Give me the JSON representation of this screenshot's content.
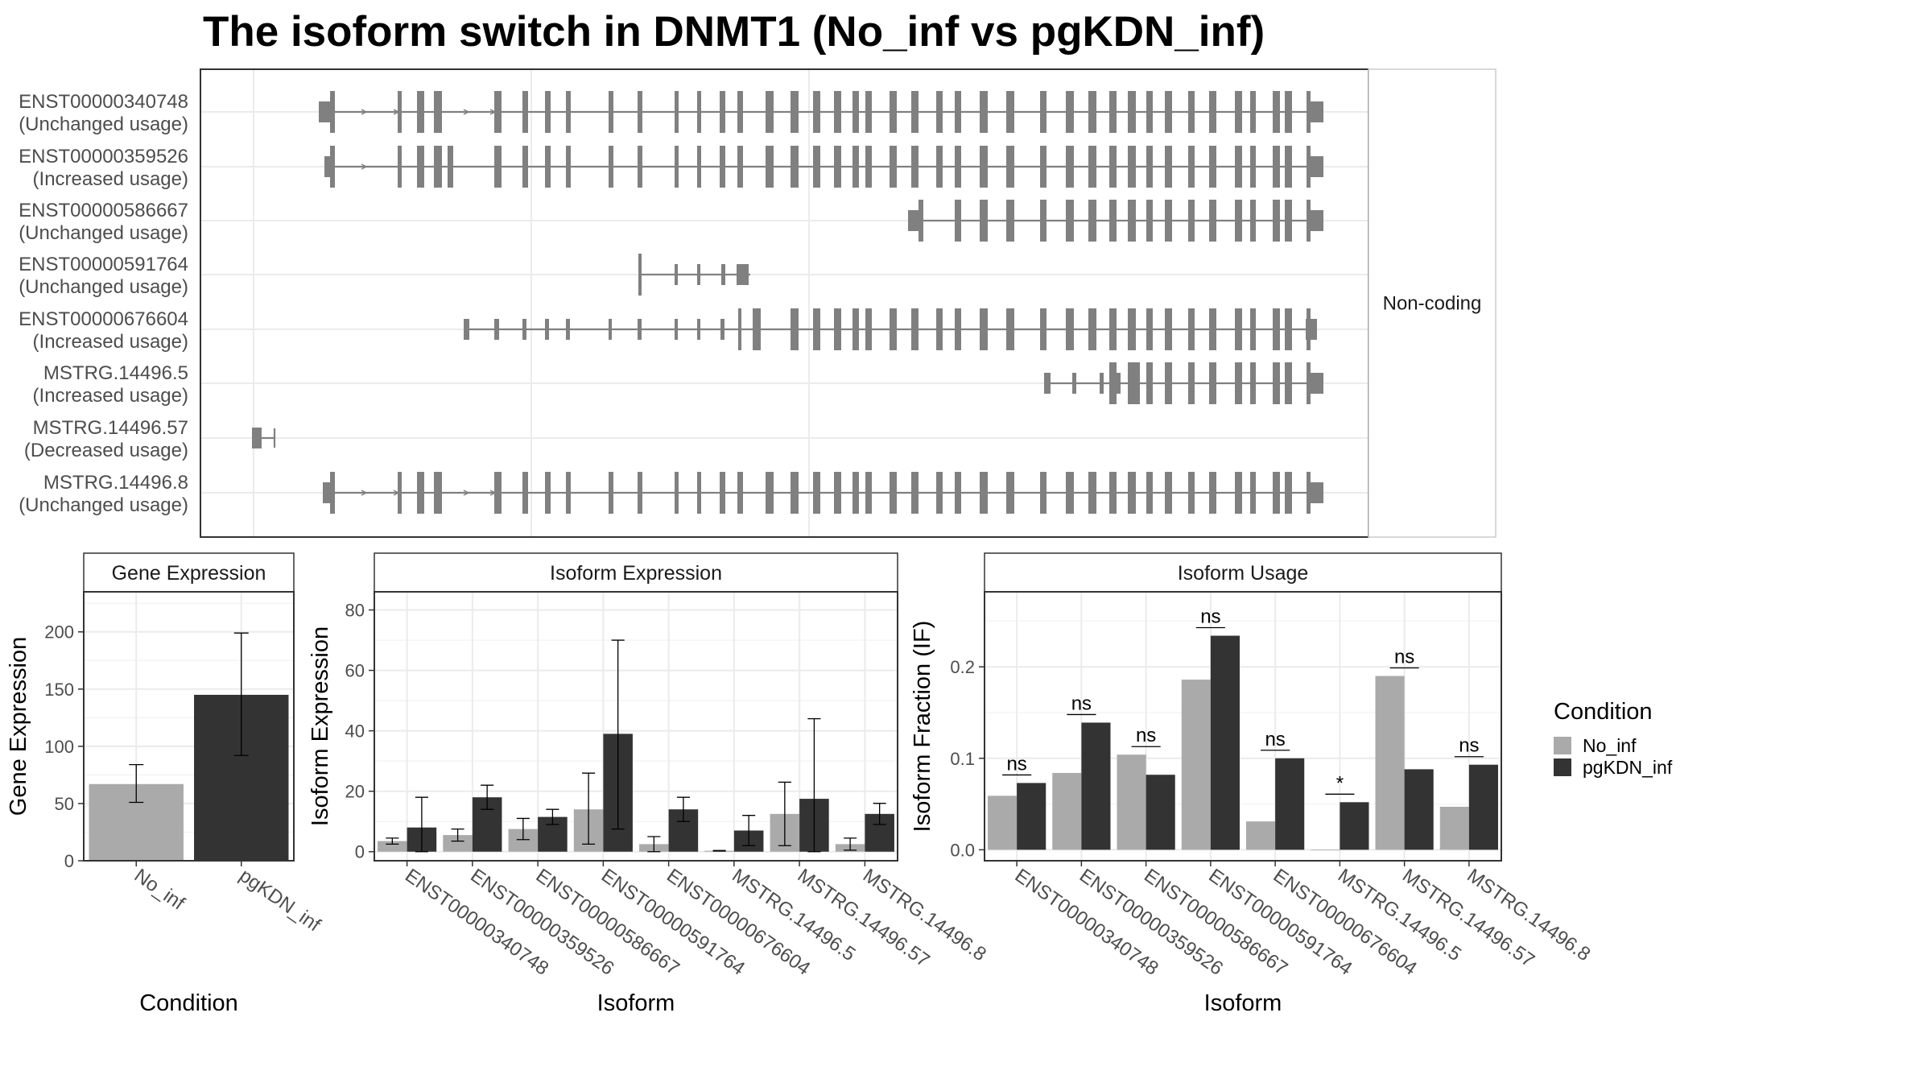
{
  "title": "The isoform switch in DNMT1 (No_inf vs pgKDN_inf)",
  "colors": {
    "No_inf": "#aaaaaa",
    "pgKDN_inf": "#333333",
    "exon": "#808080",
    "grid": "#ebebeb",
    "frame": "#333333"
  },
  "chart_data": [
    {
      "type": "gene-structure",
      "strip_label": "Non-coding",
      "isoforms": [
        {
          "id": "ENST00000340748",
          "usage": "(Unchanged usage)"
        },
        {
          "id": "ENST00000359526",
          "usage": "(Increased usage)"
        },
        {
          "id": "ENST00000586667",
          "usage": "(Unchanged usage)"
        },
        {
          "id": "ENST00000591764",
          "usage": "(Unchanged usage)"
        },
        {
          "id": "ENST00000676604",
          "usage": "(Increased usage)"
        },
        {
          "id": "MSTRG.14496.5",
          "usage": "(Increased usage)"
        },
        {
          "id": "MSTRG.14496.57",
          "usage": "(Decreased usage)"
        },
        {
          "id": "MSTRG.14496.8",
          "usage": "(Unchanged usage)"
        }
      ]
    },
    {
      "type": "bar",
      "title": "Gene Expression",
      "xlabel": "Condition",
      "ylabel": "Gene Expression",
      "categories": [
        "No_inf",
        "pgKDN_inf"
      ],
      "values": [
        67,
        145
      ],
      "error_low": [
        51,
        92
      ],
      "error_high": [
        84,
        199
      ],
      "ylim": [
        0,
        235
      ],
      "yticks": [
        0,
        50,
        100,
        150,
        200
      ]
    },
    {
      "type": "bar",
      "title": "Isoform Expression",
      "xlabel": "Isoform",
      "ylabel": "Isoform Expression",
      "categories": [
        "ENST00000340748",
        "ENST00000359526",
        "ENST00000586667",
        "ENST00000591764",
        "ENST00000676604",
        "MSTRG.14496.5",
        "MSTRG.14496.57",
        "MSTRG.14496.8"
      ],
      "series": [
        {
          "name": "No_inf",
          "values": [
            3.5,
            5.5,
            7.5,
            14,
            2.5,
            0.3,
            12.5,
            2.5
          ],
          "error_low": [
            2.5,
            3.5,
            4,
            2.5,
            0,
            0.2,
            2,
            0.5
          ],
          "error_high": [
            4.5,
            7.5,
            11,
            26,
            5,
            0.4,
            23,
            4.5
          ]
        },
        {
          "name": "pgKDN_inf",
          "values": [
            8,
            18,
            11.5,
            39,
            14,
            7,
            17.5,
            12.5
          ],
          "error_low": [
            0,
            14,
            9,
            7.5,
            10,
            2,
            0,
            9
          ],
          "error_high": [
            18,
            22,
            14,
            70,
            18,
            12,
            44,
            16
          ]
        }
      ],
      "ylim": [
        -3,
        86
      ],
      "yticks": [
        0,
        20,
        40,
        60,
        80
      ]
    },
    {
      "type": "bar",
      "title": "Isoform Usage",
      "xlabel": "Isoform",
      "ylabel": "Isoform Fraction (IF)",
      "categories": [
        "ENST00000340748",
        "ENST00000359526",
        "ENST00000586667",
        "ENST00000591764",
        "ENST00000676604",
        "MSTRG.14496.5",
        "MSTRG.14496.57",
        "MSTRG.14496.8"
      ],
      "series": [
        {
          "name": "No_inf",
          "values": [
            0.059,
            0.084,
            0.104,
            0.186,
            0.031,
            0.0,
            0.19,
            0.047
          ]
        },
        {
          "name": "pgKDN_inf",
          "values": [
            0.073,
            0.139,
            0.082,
            0.234,
            0.1,
            0.052,
            0.088,
            0.093
          ]
        }
      ],
      "significance": [
        "ns",
        "ns",
        "ns",
        "ns",
        "ns",
        "*",
        "ns",
        "ns"
      ],
      "ylim": [
        -0.012,
        0.282
      ],
      "yticks": [
        0.0,
        0.1,
        0.2
      ],
      "ytick_labels": [
        "0.0",
        "0.1",
        "0.2"
      ]
    }
  ],
  "legend": {
    "title": "Condition",
    "entries": [
      "No_inf",
      "pgKDN_inf"
    ]
  }
}
